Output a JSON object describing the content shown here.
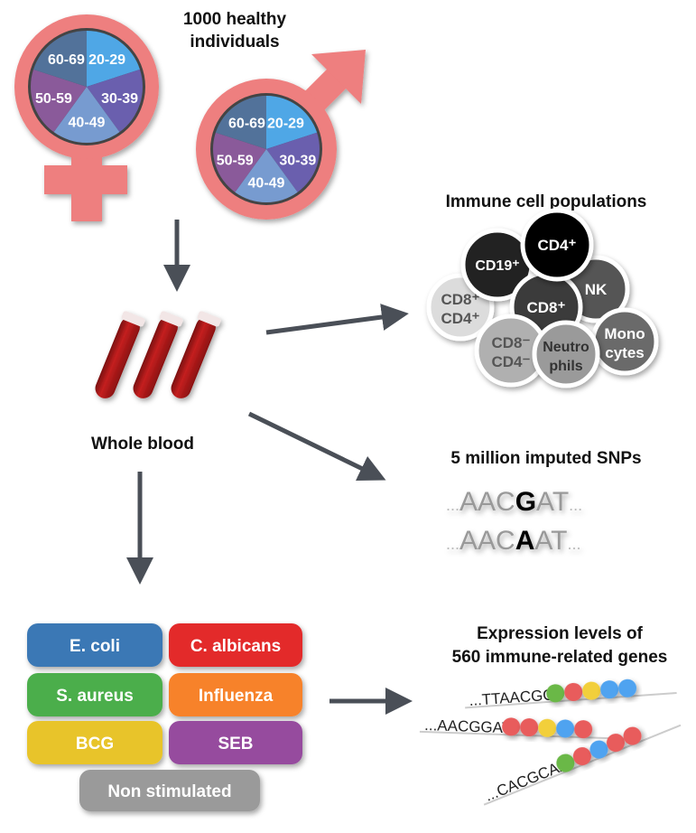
{
  "cohort": {
    "title_line1": "1000 healthy",
    "title_line2": "individuals"
  },
  "age_groups": [
    "20-29",
    "30-39",
    "40-49",
    "50-59",
    "60-69"
  ],
  "age_colors": [
    "#4fa7e6",
    "#6a5fae",
    "#779bd0",
    "#8a5a9a",
    "#52729a"
  ],
  "symbol_color": "#ee7f7f",
  "blood": {
    "label": "Whole blood"
  },
  "immune": {
    "title": "Immune cell populations",
    "cells": [
      {
        "l1": "CD8⁺",
        "l2": "CD4⁺",
        "fill": "#dcdcdc",
        "text": "#555"
      },
      {
        "l1": "CD19⁺",
        "l2": "",
        "fill": "#222222",
        "text": "#fff"
      },
      {
        "l1": "NK",
        "l2": "",
        "fill": "#555555",
        "text": "#fff"
      },
      {
        "l1": "CD8⁺",
        "l2": "",
        "fill": "#3b3b3b",
        "text": "#fff"
      },
      {
        "l1": "CD4⁺",
        "l2": "",
        "fill": "#050505",
        "text": "#fff"
      },
      {
        "l1": "CD8⁻",
        "l2": "CD4⁻",
        "fill": "#b0b0b0",
        "text": "#555"
      },
      {
        "l1": "Mono",
        "l2": "cytes",
        "fill": "#6a6a6a",
        "text": "#fff"
      },
      {
        "l1": "Neutro",
        "l2": "phils",
        "fill": "#9a9a9a",
        "text": "#333"
      }
    ]
  },
  "snps": {
    "title": "5 million imputed SNPs",
    "seq1": {
      "pre": "AAC",
      "snp": "G",
      "post": "AT"
    },
    "seq2": {
      "pre": "AAC",
      "snp": "A",
      "post": "AT"
    },
    "ellipsis": "..."
  },
  "stimuli": [
    {
      "label": "E. coli",
      "color": "#3a78b5"
    },
    {
      "label": "C. albicans",
      "color": "#e3292b"
    },
    {
      "label": "S. aureus",
      "color": "#4cae4c"
    },
    {
      "label": "Influenza",
      "color": "#f7822a"
    },
    {
      "label": "BCG",
      "color": "#e8c42c"
    },
    {
      "label": "SEB",
      "color": "#964b9e"
    },
    {
      "label": "Non stimulated",
      "color": "#9a9a9a"
    }
  ],
  "expression": {
    "title_line1": "Expression levels of",
    "title_line2": "560 immune-related genes",
    "reads": [
      {
        "seq": "...TTAACGG",
        "beads": [
          "#6bb847",
          "#e85c5c",
          "#f2cf3a",
          "#4fa3f0",
          "#4fa3f0"
        ]
      },
      {
        "seq": "...AACGGAT",
        "beads": [
          "#e85c5c",
          "#e85c5c",
          "#f2cf3a",
          "#4fa3f0",
          "#e85c5c"
        ]
      },
      {
        "seq": "...CACGCAA",
        "beads": [
          "#6bb847",
          "#e85c5c",
          "#4fa3f0",
          "#e85c5c",
          "#e85c5c"
        ]
      }
    ]
  }
}
